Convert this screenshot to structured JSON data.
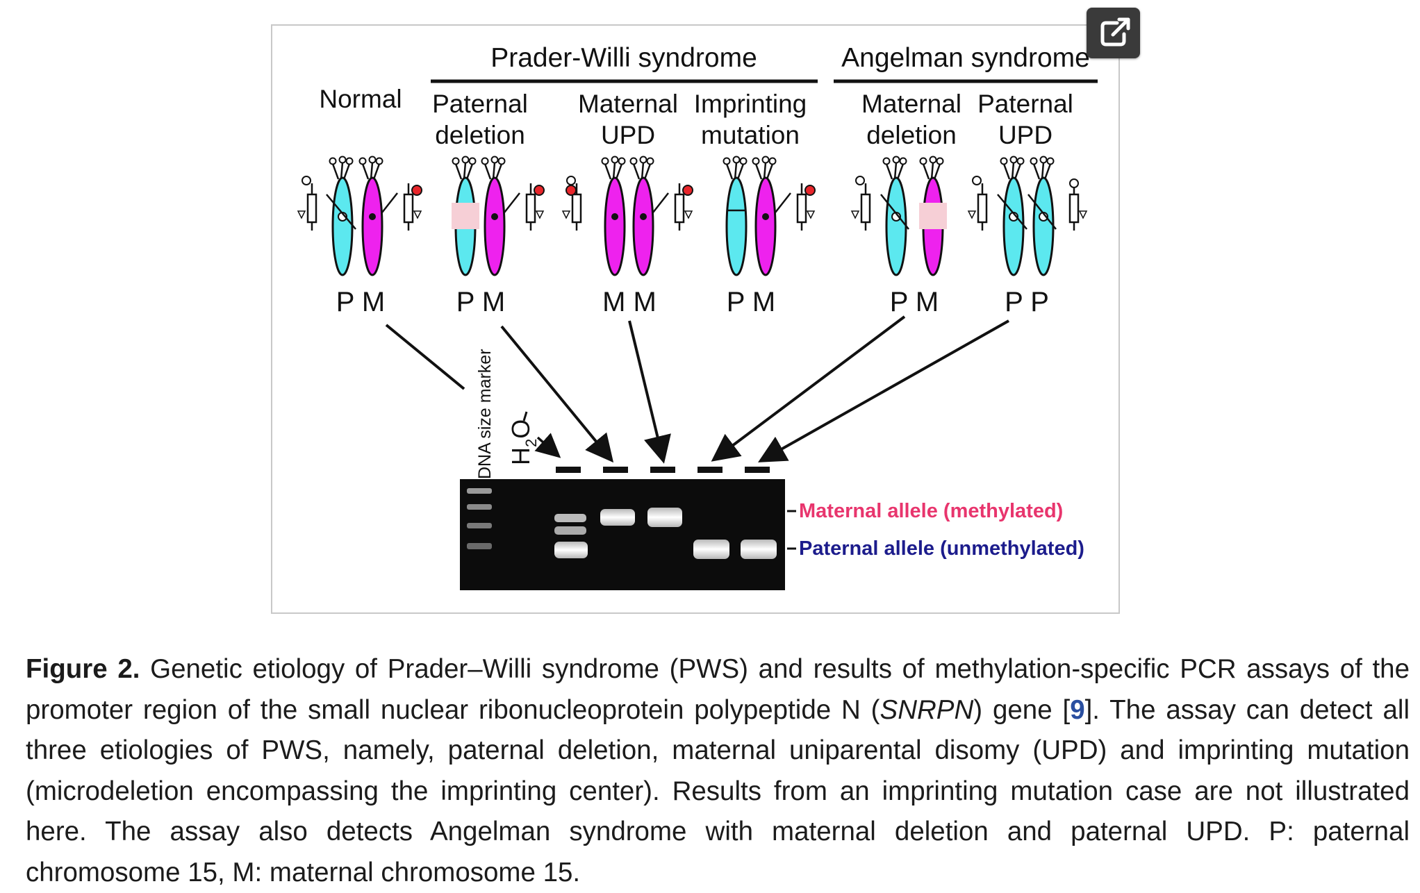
{
  "figure": {
    "group_pws": "Prader-Willi syndrome",
    "group_as": "Angelman syndrome",
    "columns": [
      {
        "line1": "Normal",
        "line2": ""
      },
      {
        "line1": "Paternal",
        "line2": "deletion"
      },
      {
        "line1": "Maternal",
        "line2": "UPD"
      },
      {
        "line1": "Imprinting",
        "line2": "mutation"
      },
      {
        "line1": "Maternal",
        "line2": "deletion"
      },
      {
        "line1": "Paternal",
        "line2": "UPD"
      }
    ],
    "chromosome_labels": [
      "P M",
      "P M",
      "M M",
      "P M",
      "P M",
      "P P"
    ],
    "lane_marker": "DNA size marker",
    "lane_water": "H",
    "lane_water_sub": "2",
    "lane_water_end": "O",
    "band_maternal": "Maternal allele (methylated)",
    "band_paternal": "Paternal allele (unmethylated)",
    "colors": {
      "paternal_chromosome": "#5ce8ef",
      "maternal_chromosome": "#ee22ee",
      "deletion": "#f6cfd6",
      "maternal_label": "#e8356d",
      "paternal_label": "#1c1c8c",
      "gel": "#0c0c0c"
    },
    "icon": "expand-icon"
  },
  "caption": {
    "label": "Figure 2.",
    "text_before_gene": " Genetic etiology of Prader–Willi syndrome (PWS) and results of methylation-specific PCR assays of the promoter region of the small nuclear ribonucleoprotein polypeptide N (",
    "gene": "SNRPN",
    "text_before_ref": ") gene [",
    "ref": "9",
    "text_after_ref": "]. The assay can detect all three etiologies of PWS, namely, paternal deletion, maternal uniparental disomy (UPD) and imprinting mutation (microdeletion encompassing the imprinting center). Results from an imprinting mutation case are not illustrated here. The assay also detects Angelman syndrome with maternal deletion and paternal UPD. P: paternal chromosome 15, M: maternal chromosome 15."
  }
}
